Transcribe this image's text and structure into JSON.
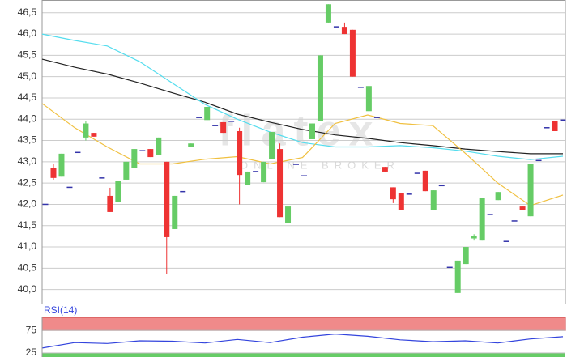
{
  "chart_data": {
    "type": "candlestick",
    "open": [
      42.0,
      42.85,
      42.65,
      42.4,
      43.22,
      43.57,
      43.68,
      42.62,
      42.2,
      42.05,
      42.58,
      42.86,
      43.26,
      43.3,
      43.15,
      43.0,
      41.42,
      42.3,
      43.34,
      44.04,
      43.98,
      43.85,
      43.93,
      43.95,
      43.72,
      42.46,
      42.77,
      42.52,
      43.07,
      43.3,
      41.57,
      42.94,
      42.67,
      43.53,
      43.95,
      46.27,
      46.17,
      46.17,
      46.1,
      44.75,
      44.19,
      44.04,
      42.88,
      42.4,
      42.27,
      42.24,
      42.73,
      42.79,
      41.86,
      42.44,
      40.52,
      39.92,
      40.6,
      41.2,
      41.15,
      41.76,
      42.1,
      41.13,
      41.61,
      41.95,
      41.72,
      43.03,
      43.8,
      43.95,
      43.98
    ],
    "high": [
      42.0,
      42.94,
      43.19,
      42.4,
      43.22,
      43.95,
      43.68,
      42.62,
      42.39,
      42.56,
      43.0,
      43.3,
      43.26,
      43.3,
      43.57,
      43.0,
      42.2,
      42.3,
      43.43,
      44.04,
      44.29,
      43.85,
      43.93,
      43.95,
      43.8,
      42.77,
      42.77,
      43.0,
      43.7,
      43.43,
      41.95,
      42.94,
      42.67,
      43.9,
      45.5,
      46.7,
      46.17,
      46.27,
      46.1,
      44.75,
      44.78,
      44.04,
      42.88,
      42.4,
      42.27,
      42.24,
      42.73,
      42.79,
      42.33,
      42.44,
      40.52,
      40.68,
      41.0,
      41.3,
      42.16,
      41.76,
      42.29,
      41.13,
      41.61,
      41.95,
      42.94,
      43.03,
      43.8,
      43.95,
      43.98
    ],
    "low": [
      42.0,
      42.58,
      42.65,
      42.4,
      43.22,
      43.5,
      43.59,
      42.62,
      41.82,
      42.05,
      42.58,
      42.86,
      43.26,
      43.11,
      43.15,
      40.37,
      41.42,
      42.3,
      43.34,
      44.04,
      43.98,
      43.85,
      43.68,
      43.95,
      42.0,
      42.46,
      42.77,
      42.52,
      43.07,
      41.7,
      41.57,
      42.94,
      42.67,
      43.53,
      43.95,
      46.27,
      46.17,
      46.0,
      45.0,
      44.75,
      44.19,
      44.04,
      42.77,
      42.03,
      41.86,
      42.24,
      42.73,
      42.31,
      41.86,
      42.44,
      40.52,
      39.92,
      40.6,
      41.15,
      41.15,
      41.76,
      42.1,
      41.13,
      41.61,
      41.87,
      41.72,
      43.03,
      43.8,
      43.72,
      43.98
    ],
    "close": [
      42.0,
      42.62,
      43.19,
      42.4,
      43.22,
      43.9,
      43.59,
      42.62,
      41.82,
      42.56,
      43.0,
      43.3,
      43.26,
      43.11,
      43.57,
      41.23,
      42.2,
      42.3,
      43.43,
      44.04,
      44.29,
      43.85,
      43.68,
      43.95,
      42.69,
      42.77,
      42.77,
      43.0,
      43.7,
      41.7,
      41.95,
      42.94,
      42.67,
      43.9,
      45.5,
      46.7,
      46.17,
      46.0,
      45.0,
      44.75,
      44.78,
      44.04,
      42.77,
      42.12,
      41.86,
      42.24,
      42.73,
      42.31,
      42.33,
      42.44,
      40.52,
      40.68,
      41.0,
      41.26,
      42.16,
      41.76,
      42.29,
      41.13,
      41.61,
      41.87,
      42.94,
      43.03,
      43.8,
      43.72,
      43.98
    ],
    "up_color": "#66cc66",
    "down_color": "#ee3333",
    "flat_color": "#3333aa",
    "ylim": [
      39.67,
      46.8
    ],
    "yticks": [
      {
        "value": 40.0,
        "label": "40,0"
      },
      {
        "value": 40.5,
        "label": "40,5"
      },
      {
        "value": 41.0,
        "label": "41,0"
      },
      {
        "value": 41.5,
        "label": "41,5"
      },
      {
        "value": 42.0,
        "label": "42,0"
      },
      {
        "value": 42.5,
        "label": "42,5"
      },
      {
        "value": 43.0,
        "label": "43,0"
      },
      {
        "value": 43.5,
        "label": "43,5"
      },
      {
        "value": 44.0,
        "label": "44,0"
      },
      {
        "value": 44.5,
        "label": "44,5"
      },
      {
        "value": 45.0,
        "label": "45,0"
      },
      {
        "value": 45.5,
        "label": "45,5"
      },
      {
        "value": 46.0,
        "label": "46,0"
      },
      {
        "value": 46.5,
        "label": "46,5"
      }
    ],
    "grid": true,
    "lines": [
      {
        "color": "#222222",
        "values": [
          45.41,
          45.22,
          45.06,
          44.85,
          44.62,
          44.4,
          44.12,
          43.93,
          43.76,
          43.63,
          43.55,
          43.45,
          43.38,
          43.3,
          43.24,
          43.19,
          43.19
        ]
      },
      {
        "color": "#55ddee",
        "values": [
          46.0,
          45.85,
          45.72,
          45.35,
          44.85,
          44.35,
          44.0,
          43.7,
          43.45,
          43.35,
          43.35,
          43.38,
          43.33,
          43.25,
          43.13,
          43.05,
          43.13
        ]
      },
      {
        "color": "#f0c040",
        "values": [
          44.37,
          43.8,
          43.35,
          42.95,
          42.95,
          43.06,
          43.12,
          42.95,
          43.1,
          43.9,
          44.1,
          43.9,
          43.85,
          43.2,
          42.5,
          41.97,
          42.22
        ]
      }
    ],
    "watermark": [
      "flatex",
      "ONLINE BROKER"
    ],
    "rsi": {
      "title": "RSI(14)",
      "color": "#3344dd",
      "ylim": [
        16,
        104
      ],
      "yticks": [
        75,
        25
      ],
      "high_zone_color": "#f08a8a",
      "low_zone_color": "#66cc66",
      "values": [
        36,
        48,
        46,
        52,
        51,
        47,
        55,
        48,
        60,
        67,
        62,
        54,
        50,
        52,
        47,
        56,
        61
      ]
    }
  }
}
